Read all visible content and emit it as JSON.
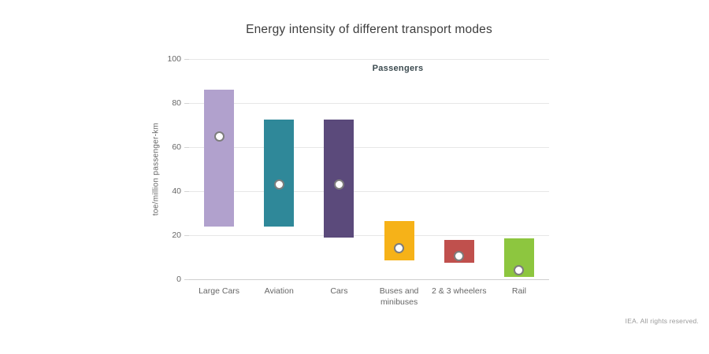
{
  "title": "Energy intensity of different transport modes",
  "footer": "IEA. All rights reserved.",
  "chart_data": {
    "type": "bar",
    "subtype": "floating-range-bars-with-point-markers",
    "series_label": "Passengers",
    "ylabel": "toe/million passenger-km",
    "ylim": [
      0,
      100
    ],
    "yticks": [
      0,
      20,
      40,
      60,
      80,
      100
    ],
    "grid": true,
    "legend": "none",
    "categories": [
      "Large Cars",
      "Aviation",
      "Cars",
      "Buses and minibuses",
      "2 & 3 wheelers",
      "Rail"
    ],
    "bars": [
      {
        "category": "Large Cars",
        "low": 24,
        "high": 86,
        "point": 65,
        "color": "#b1a1cd"
      },
      {
        "category": "Aviation",
        "low": 24,
        "high": 72.5,
        "point": 43,
        "color": "#2f8899"
      },
      {
        "category": "Cars",
        "low": 19,
        "high": 72.5,
        "point": 43,
        "color": "#5b4a7b"
      },
      {
        "category": "Buses and minibuses",
        "low": 8.5,
        "high": 26.5,
        "point": 14,
        "color": "#f6b218"
      },
      {
        "category": "2 & 3 wheelers",
        "low": 7.5,
        "high": 18,
        "point": 10.5,
        "color": "#c0504d"
      },
      {
        "category": "Rail",
        "low": 1,
        "high": 18.5,
        "point": 4,
        "color": "#8dc63f"
      }
    ],
    "point_marker": {
      "fill": "#ffffff",
      "border": "#7d7d7d"
    }
  }
}
